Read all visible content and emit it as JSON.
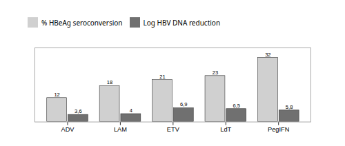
{
  "chart_data": {
    "type": "bar",
    "categories": [
      "ADV",
      "LAM",
      "ETV",
      "LdT",
      "PegIFN"
    ],
    "series": [
      {
        "name": "% HBeAg seroconversion",
        "color": "#d0d0d0",
        "values": [
          12,
          18,
          21,
          23,
          32
        ]
      },
      {
        "name": "Log HBV DNA reduction",
        "color": "#707070",
        "values": [
          3.6,
          4,
          6.9,
          6.5,
          5.8
        ],
        "value_labels": [
          "3,6",
          "4",
          "6,9",
          "6,5",
          "5,8"
        ]
      }
    ],
    "ylim": [
      0,
      37
    ],
    "tick_labels": "x",
    "data_labels": true,
    "legend": "upper left"
  }
}
